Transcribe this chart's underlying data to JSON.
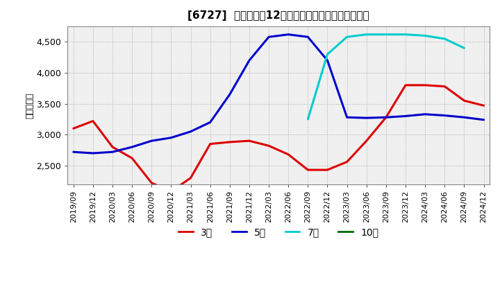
{
  "title": "[6727]  当期純利益12か月移動合計の標準偏差の推移",
  "ylabel": "（百万円）",
  "ylim": [
    2200,
    4750
  ],
  "yticks": [
    2500,
    3000,
    3500,
    4000,
    4500
  ],
  "bg_color": "#ffffff",
  "plot_bg_color": "#f0f0f0",
  "grid_color": "#aaaaaa",
  "series": {
    "3年": {
      "color": "#dd0000",
      "y": [
        3100,
        3220,
        2800,
        2620,
        2220,
        2080,
        2300,
        2850,
        2880,
        2900,
        2820,
        2680,
        2430,
        2430,
        2560,
        2900,
        3280,
        3800,
        3800,
        3780,
        3550,
        3470
      ]
    },
    "5年": {
      "color": "#0000cc",
      "y": [
        2720,
        2700,
        2720,
        2800,
        2900,
        2950,
        3050,
        3200,
        3650,
        4200,
        4580,
        4620,
        4580,
        4200,
        3280,
        3270,
        3280,
        3300,
        3330,
        3310,
        3280,
        3240
      ]
    },
    "7年": {
      "color": "#00cccc",
      "y": [
        null,
        null,
        null,
        null,
        null,
        null,
        null,
        null,
        null,
        null,
        null,
        null,
        3250,
        4300,
        4580,
        4620,
        4620,
        4620,
        4600,
        4550,
        4400,
        null
      ]
    },
    "10年": {
      "color": "#006600",
      "y": [
        null,
        null,
        null,
        null,
        null,
        null,
        null,
        null,
        null,
        null,
        null,
        null,
        null,
        null,
        null,
        null,
        null,
        null,
        null,
        null,
        null,
        null
      ]
    }
  },
  "xtick_labels": [
    "2019/09",
    "2019/12",
    "2020/03",
    "2020/06",
    "2020/09",
    "2020/12",
    "2021/03",
    "2021/06",
    "2021/09",
    "2021/12",
    "2022/03",
    "2022/06",
    "2022/09",
    "2022/12",
    "2023/03",
    "2023/06",
    "2023/09",
    "2023/12",
    "2024/03",
    "2024/06",
    "2024/09",
    "2024/12"
  ],
  "legend_labels": [
    "3年",
    "5年",
    "7年",
    "10年"
  ],
  "legend_colors": [
    "#dd0000",
    "#0000cc",
    "#00cccc",
    "#006600"
  ],
  "linewidth": 2.2
}
